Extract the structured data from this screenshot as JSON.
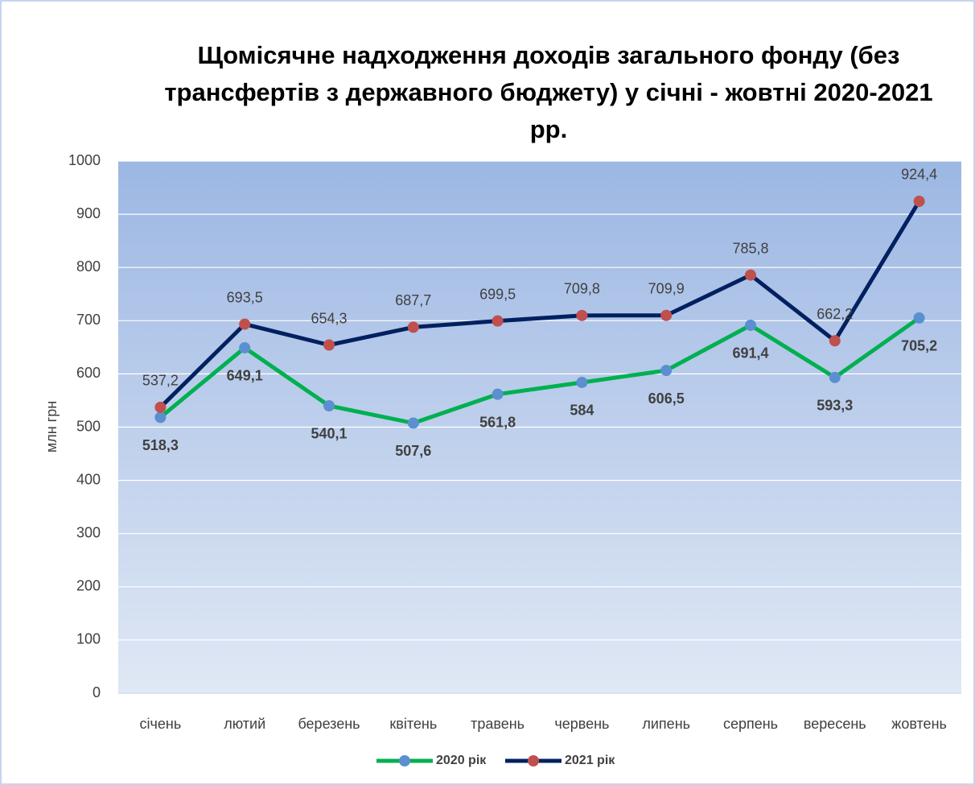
{
  "chart_data": {
    "type": "line",
    "title": "Щомісячне надходження доходів загального фонду (без трансфертів з державного бюджету) у січні - жовтні 2020-2021 рр.",
    "ylabel": "млн грн",
    "categories": [
      "січень",
      "лютий",
      "березень",
      "квітень",
      "травень",
      "червень",
      "липень",
      "серпень",
      "вересень",
      "жовтень"
    ],
    "series": [
      {
        "name": "2020 рік",
        "color": "#00b050",
        "marker_color": "#5b8fd0",
        "values": [
          518.3,
          649.1,
          540.1,
          507.6,
          561.8,
          584,
          606.5,
          691.4,
          593.3,
          705.2
        ],
        "value_labels": [
          "518,3",
          "649,1",
          "540,1",
          "507,6",
          "561,8",
          "584",
          "606,5",
          "691,4",
          "593,3",
          "705,2"
        ]
      },
      {
        "name": "2021 рік",
        "color": "#002060",
        "marker_color": "#c0504d",
        "values": [
          537.2,
          693.5,
          654.3,
          687.7,
          699.5,
          709.8,
          709.9,
          785.8,
          662.2,
          924.4
        ],
        "value_labels": [
          "537,2",
          "693,5",
          "654,3",
          "687,7",
          "699,5",
          "709,8",
          "709,9",
          "785,8",
          "662,2",
          "924,4"
        ]
      }
    ],
    "ylim": [
      0,
      1000
    ],
    "yticks": [
      0,
      100,
      200,
      300,
      400,
      500,
      600,
      700,
      800,
      900,
      1000
    ],
    "grid": true,
    "legend": "bottom"
  }
}
